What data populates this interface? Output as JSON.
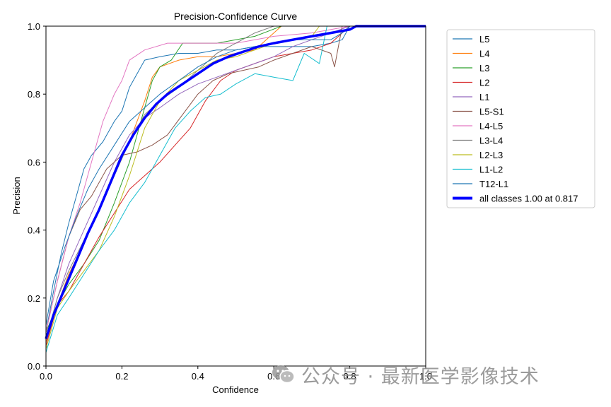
{
  "chart_data": {
    "type": "line",
    "title": "Precision-Confidence Curve",
    "xlabel": "Confidence",
    "ylabel": "Precision",
    "xlim": [
      0,
      1
    ],
    "ylim": [
      0,
      1
    ],
    "xticks": [
      "0.0",
      "0.2",
      "0.4",
      "0.6",
      "0.8",
      "1.0"
    ],
    "yticks": [
      "0.0",
      "0.2",
      "0.4",
      "0.6",
      "0.8",
      "1.0"
    ],
    "legend_position": "right-outside",
    "series": [
      {
        "name": "L5",
        "color": "#1f77b4",
        "width": 1,
        "points": [
          [
            0,
            0.1
          ],
          [
            0.02,
            0.22
          ],
          [
            0.04,
            0.33
          ],
          [
            0.06,
            0.42
          ],
          [
            0.08,
            0.5
          ],
          [
            0.1,
            0.58
          ],
          [
            0.12,
            0.62
          ],
          [
            0.15,
            0.66
          ],
          [
            0.18,
            0.72
          ],
          [
            0.2,
            0.75
          ],
          [
            0.22,
            0.82
          ],
          [
            0.26,
            0.9
          ],
          [
            0.3,
            0.91
          ],
          [
            0.35,
            0.92
          ],
          [
            0.4,
            0.92
          ],
          [
            0.45,
            0.93
          ],
          [
            0.5,
            0.93
          ],
          [
            0.55,
            0.94
          ],
          [
            0.6,
            0.94
          ],
          [
            0.65,
            0.94
          ],
          [
            0.7,
            0.94
          ],
          [
            0.75,
            0.95
          ],
          [
            0.78,
            0.96
          ],
          [
            0.8,
            1.0
          ],
          [
            1.0,
            1.0
          ]
        ]
      },
      {
        "name": "L4",
        "color": "#ff7f0e",
        "width": 1,
        "points": [
          [
            0,
            0.07
          ],
          [
            0.03,
            0.18
          ],
          [
            0.06,
            0.27
          ],
          [
            0.1,
            0.36
          ],
          [
            0.14,
            0.46
          ],
          [
            0.18,
            0.57
          ],
          [
            0.22,
            0.66
          ],
          [
            0.26,
            0.78
          ],
          [
            0.28,
            0.85
          ],
          [
            0.3,
            0.88
          ],
          [
            0.35,
            0.9
          ],
          [
            0.4,
            0.91
          ],
          [
            0.45,
            0.91
          ],
          [
            0.5,
            0.92
          ],
          [
            0.55,
            0.93
          ],
          [
            0.6,
            0.98
          ],
          [
            0.62,
            1.0
          ],
          [
            1.0,
            1.0
          ]
        ]
      },
      {
        "name": "L3",
        "color": "#2ca02c",
        "width": 1,
        "points": [
          [
            0,
            0.1
          ],
          [
            0.03,
            0.18
          ],
          [
            0.06,
            0.24
          ],
          [
            0.1,
            0.3
          ],
          [
            0.14,
            0.37
          ],
          [
            0.18,
            0.48
          ],
          [
            0.22,
            0.6
          ],
          [
            0.26,
            0.76
          ],
          [
            0.28,
            0.84
          ],
          [
            0.3,
            0.88
          ],
          [
            0.33,
            0.9
          ],
          [
            0.36,
            0.95
          ],
          [
            0.45,
            0.95
          ],
          [
            0.55,
            0.97
          ],
          [
            0.62,
            1.0
          ],
          [
            1.0,
            1.0
          ]
        ]
      },
      {
        "name": "L2",
        "color": "#d62728",
        "width": 1,
        "points": [
          [
            0,
            0.06
          ],
          [
            0.03,
            0.18
          ],
          [
            0.06,
            0.22
          ],
          [
            0.1,
            0.3
          ],
          [
            0.14,
            0.38
          ],
          [
            0.18,
            0.45
          ],
          [
            0.22,
            0.52
          ],
          [
            0.26,
            0.56
          ],
          [
            0.3,
            0.6
          ],
          [
            0.34,
            0.65
          ],
          [
            0.38,
            0.7
          ],
          [
            0.42,
            0.78
          ],
          [
            0.46,
            0.84
          ],
          [
            0.5,
            0.87
          ],
          [
            0.55,
            0.89
          ],
          [
            0.6,
            0.91
          ],
          [
            0.65,
            0.92
          ],
          [
            0.7,
            0.93
          ],
          [
            0.75,
            0.95
          ],
          [
            0.8,
            1.0
          ],
          [
            1.0,
            1.0
          ]
        ]
      },
      {
        "name": "L1",
        "color": "#9467bd",
        "width": 1,
        "points": [
          [
            0,
            0.08
          ],
          [
            0.03,
            0.2
          ],
          [
            0.06,
            0.3
          ],
          [
            0.1,
            0.4
          ],
          [
            0.14,
            0.5
          ],
          [
            0.18,
            0.6
          ],
          [
            0.22,
            0.68
          ],
          [
            0.26,
            0.73
          ],
          [
            0.3,
            0.76
          ],
          [
            0.35,
            0.8
          ],
          [
            0.4,
            0.83
          ],
          [
            0.45,
            0.85
          ],
          [
            0.5,
            0.87
          ],
          [
            0.55,
            0.89
          ],
          [
            0.6,
            0.91
          ],
          [
            0.65,
            0.94
          ],
          [
            0.7,
            0.96
          ],
          [
            0.75,
            0.98
          ],
          [
            0.8,
            1.0
          ],
          [
            1.0,
            1.0
          ]
        ]
      },
      {
        "name": "L5-S1",
        "color": "#8c564b",
        "width": 1,
        "points": [
          [
            0,
            0.1
          ],
          [
            0.03,
            0.25
          ],
          [
            0.06,
            0.38
          ],
          [
            0.09,
            0.46
          ],
          [
            0.12,
            0.5
          ],
          [
            0.16,
            0.58
          ],
          [
            0.2,
            0.62
          ],
          [
            0.24,
            0.63
          ],
          [
            0.28,
            0.65
          ],
          [
            0.32,
            0.68
          ],
          [
            0.36,
            0.74
          ],
          [
            0.4,
            0.8
          ],
          [
            0.44,
            0.84
          ],
          [
            0.48,
            0.86
          ],
          [
            0.52,
            0.87
          ],
          [
            0.56,
            0.88
          ],
          [
            0.6,
            0.9
          ],
          [
            0.65,
            0.92
          ],
          [
            0.7,
            0.94
          ],
          [
            0.75,
            0.92
          ],
          [
            0.76,
            0.88
          ],
          [
            0.78,
            1.0
          ],
          [
            1.0,
            1.0
          ]
        ]
      },
      {
        "name": "L4-L5",
        "color": "#e377c2",
        "width": 1,
        "points": [
          [
            0,
            0.1
          ],
          [
            0.03,
            0.25
          ],
          [
            0.06,
            0.38
          ],
          [
            0.09,
            0.48
          ],
          [
            0.12,
            0.6
          ],
          [
            0.15,
            0.72
          ],
          [
            0.18,
            0.8
          ],
          [
            0.2,
            0.84
          ],
          [
            0.22,
            0.9
          ],
          [
            0.26,
            0.93
          ],
          [
            0.32,
            0.95
          ],
          [
            0.4,
            0.95
          ],
          [
            0.5,
            0.95
          ],
          [
            0.6,
            0.97
          ],
          [
            0.7,
            0.98
          ],
          [
            0.8,
            1.0
          ],
          [
            1.0,
            1.0
          ]
        ]
      },
      {
        "name": "L3-L4",
        "color": "#7f7f7f",
        "width": 1,
        "points": [
          [
            0,
            0.08
          ],
          [
            0.03,
            0.2
          ],
          [
            0.06,
            0.28
          ],
          [
            0.1,
            0.37
          ],
          [
            0.14,
            0.46
          ],
          [
            0.18,
            0.56
          ],
          [
            0.22,
            0.66
          ],
          [
            0.26,
            0.74
          ],
          [
            0.3,
            0.78
          ],
          [
            0.35,
            0.82
          ],
          [
            0.4,
            0.87
          ],
          [
            0.45,
            0.92
          ],
          [
            0.5,
            0.95
          ],
          [
            0.55,
            0.98
          ],
          [
            0.6,
            1.0
          ],
          [
            1.0,
            1.0
          ]
        ]
      },
      {
        "name": "L2-L3",
        "color": "#bcbd22",
        "width": 1,
        "points": [
          [
            0,
            0.05
          ],
          [
            0.03,
            0.17
          ],
          [
            0.06,
            0.22
          ],
          [
            0.1,
            0.28
          ],
          [
            0.14,
            0.34
          ],
          [
            0.18,
            0.44
          ],
          [
            0.22,
            0.56
          ],
          [
            0.26,
            0.7
          ],
          [
            0.3,
            0.78
          ],
          [
            0.35,
            0.84
          ],
          [
            0.4,
            0.87
          ],
          [
            0.45,
            0.9
          ],
          [
            0.5,
            0.91
          ],
          [
            0.55,
            0.93
          ],
          [
            0.6,
            0.95
          ],
          [
            0.65,
            0.96
          ],
          [
            0.7,
            0.97
          ],
          [
            0.72,
            1.0
          ],
          [
            1.0,
            1.0
          ]
        ]
      },
      {
        "name": "L1-L2",
        "color": "#17becf",
        "width": 1,
        "points": [
          [
            0,
            0.04
          ],
          [
            0.03,
            0.15
          ],
          [
            0.06,
            0.2
          ],
          [
            0.1,
            0.27
          ],
          [
            0.14,
            0.34
          ],
          [
            0.18,
            0.4
          ],
          [
            0.22,
            0.48
          ],
          [
            0.26,
            0.54
          ],
          [
            0.3,
            0.62
          ],
          [
            0.34,
            0.7
          ],
          [
            0.38,
            0.75
          ],
          [
            0.42,
            0.79
          ],
          [
            0.46,
            0.8
          ],
          [
            0.5,
            0.83
          ],
          [
            0.55,
            0.86
          ],
          [
            0.6,
            0.85
          ],
          [
            0.65,
            0.84
          ],
          [
            0.68,
            0.92
          ],
          [
            0.72,
            0.89
          ],
          [
            0.74,
            1.0
          ],
          [
            1.0,
            1.0
          ]
        ]
      },
      {
        "name": "T12-L1",
        "color": "#1f77b4",
        "width": 1,
        "points": [
          [
            0,
            0.12
          ],
          [
            0.02,
            0.25
          ],
          [
            0.05,
            0.35
          ],
          [
            0.08,
            0.44
          ],
          [
            0.11,
            0.52
          ],
          [
            0.14,
            0.58
          ],
          [
            0.18,
            0.65
          ],
          [
            0.22,
            0.72
          ],
          [
            0.26,
            0.76
          ],
          [
            0.3,
            0.8
          ],
          [
            0.35,
            0.84
          ],
          [
            0.4,
            0.88
          ],
          [
            0.45,
            0.91
          ],
          [
            0.5,
            0.93
          ],
          [
            0.55,
            0.94
          ],
          [
            0.6,
            0.95
          ],
          [
            0.65,
            0.96
          ],
          [
            0.7,
            0.96
          ],
          [
            0.75,
            0.96
          ],
          [
            0.78,
            0.98
          ],
          [
            0.8,
            1.0
          ],
          [
            1.0,
            1.0
          ]
        ]
      },
      {
        "name": "all classes 1.00 at 0.817",
        "color": "#0000ff",
        "width": 3.5,
        "points": [
          [
            0,
            0.08
          ],
          [
            0.02,
            0.15
          ],
          [
            0.05,
            0.23
          ],
          [
            0.08,
            0.31
          ],
          [
            0.11,
            0.39
          ],
          [
            0.14,
            0.46
          ],
          [
            0.17,
            0.54
          ],
          [
            0.2,
            0.62
          ],
          [
            0.23,
            0.68
          ],
          [
            0.26,
            0.73
          ],
          [
            0.29,
            0.77
          ],
          [
            0.32,
            0.8
          ],
          [
            0.36,
            0.83
          ],
          [
            0.4,
            0.86
          ],
          [
            0.44,
            0.89
          ],
          [
            0.48,
            0.91
          ],
          [
            0.52,
            0.925
          ],
          [
            0.56,
            0.94
          ],
          [
            0.6,
            0.95
          ],
          [
            0.65,
            0.96
          ],
          [
            0.7,
            0.97
          ],
          [
            0.75,
            0.98
          ],
          [
            0.8,
            0.99
          ],
          [
            0.817,
            1.0
          ],
          [
            1.0,
            1.0
          ]
        ]
      }
    ]
  },
  "watermark": {
    "text": "公众号 · 最新医学影像技术",
    "icon": "wechat-icon"
  }
}
